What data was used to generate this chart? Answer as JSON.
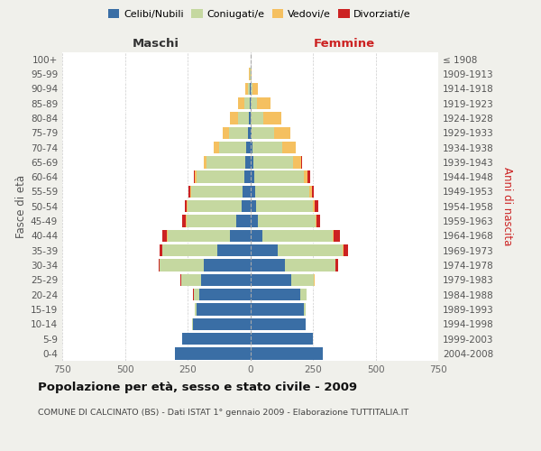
{
  "age_groups": [
    "0-4",
    "5-9",
    "10-14",
    "15-19",
    "20-24",
    "25-29",
    "30-34",
    "35-39",
    "40-44",
    "45-49",
    "50-54",
    "55-59",
    "60-64",
    "65-69",
    "70-74",
    "75-79",
    "80-84",
    "85-89",
    "90-94",
    "95-99",
    "100+"
  ],
  "birth_years": [
    "2004-2008",
    "1999-2003",
    "1994-1998",
    "1989-1993",
    "1984-1988",
    "1979-1983",
    "1974-1978",
    "1969-1973",
    "1964-1968",
    "1959-1963",
    "1954-1958",
    "1949-1953",
    "1944-1948",
    "1939-1943",
    "1934-1938",
    "1929-1933",
    "1924-1928",
    "1919-1923",
    "1914-1918",
    "1909-1913",
    "≤ 1908"
  ],
  "male": {
    "celibi": [
      300,
      270,
      230,
      215,
      205,
      195,
      185,
      130,
      80,
      55,
      35,
      30,
      25,
      20,
      15,
      8,
      5,
      3,
      2,
      0,
      0
    ],
    "coniugati": [
      0,
      0,
      2,
      5,
      20,
      80,
      175,
      220,
      250,
      200,
      215,
      205,
      190,
      155,
      110,
      75,
      45,
      20,
      8,
      2,
      0
    ],
    "vedovi": [
      0,
      0,
      0,
      0,
      1,
      1,
      1,
      1,
      2,
      2,
      2,
      3,
      5,
      10,
      20,
      25,
      30,
      25,
      8,
      2,
      0
    ],
    "divorziati": [
      0,
      0,
      0,
      0,
      1,
      2,
      5,
      12,
      20,
      15,
      10,
      8,
      5,
      0,
      0,
      0,
      0,
      0,
      0,
      0,
      0
    ]
  },
  "female": {
    "nubili": [
      290,
      250,
      220,
      215,
      200,
      165,
      140,
      110,
      50,
      30,
      25,
      20,
      15,
      12,
      8,
      5,
      3,
      2,
      2,
      0,
      0
    ],
    "coniugate": [
      0,
      0,
      2,
      5,
      25,
      90,
      200,
      260,
      280,
      230,
      225,
      215,
      200,
      160,
      120,
      90,
      50,
      25,
      8,
      2,
      0
    ],
    "vedove": [
      0,
      0,
      0,
      0,
      0,
      1,
      1,
      2,
      3,
      5,
      8,
      10,
      15,
      30,
      55,
      65,
      70,
      55,
      20,
      5,
      2
    ],
    "divorziate": [
      0,
      0,
      0,
      0,
      1,
      2,
      8,
      18,
      25,
      15,
      12,
      10,
      8,
      5,
      0,
      0,
      0,
      0,
      0,
      0,
      0
    ]
  },
  "colors": {
    "celibi": "#3a6ea5",
    "coniugati": "#c5d8a0",
    "vedovi": "#f5c060",
    "divorziati": "#cc2222"
  },
  "xlim": 750,
  "title": "Popolazione per età, sesso e stato civile - 2009",
  "subtitle": "COMUNE DI CALCINATO (BS) - Dati ISTAT 1° gennaio 2009 - Elaborazione TUTTITALIA.IT",
  "ylabel_left": "Fasce di età",
  "ylabel_right": "Anni di nascita",
  "xlabel_left": "Maschi",
  "xlabel_right": "Femmine",
  "bg_color": "#f0f0eb",
  "plot_bg": "#ffffff"
}
